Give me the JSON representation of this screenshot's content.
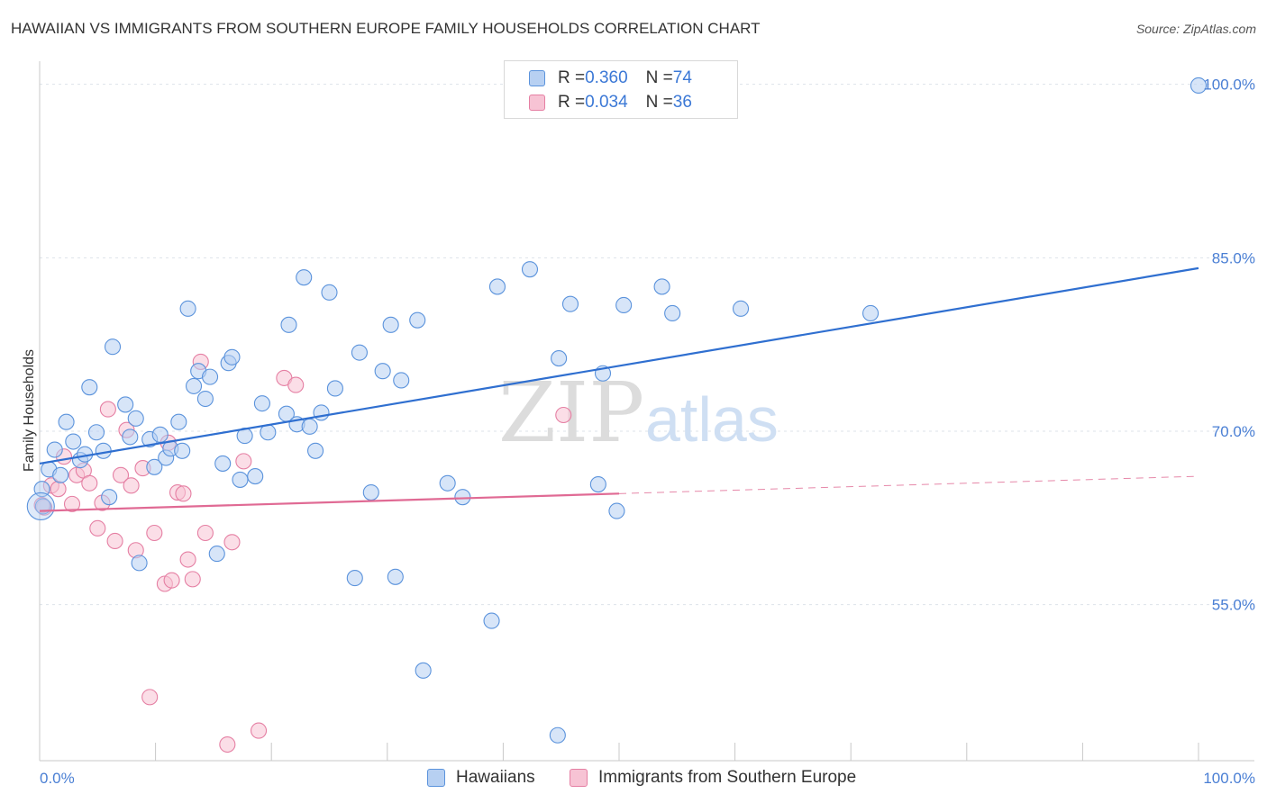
{
  "title": "HAWAIIAN VS IMMIGRANTS FROM SOUTHERN EUROPE FAMILY HOUSEHOLDS CORRELATION CHART",
  "source": "Source: ZipAtlas.com",
  "watermark": {
    "zip": "ZIP",
    "atlas": "atlas"
  },
  "legend": {
    "rows": [
      {
        "r_label": "R = ",
        "r_value": "0.360",
        "n_label": "N = ",
        "n_value": "74"
      },
      {
        "r_label": "R = ",
        "r_value": "0.034",
        "n_label": "N = ",
        "n_value": "36"
      }
    ]
  },
  "bottom_legend": {
    "hawaiians": "Hawaiians",
    "immigrants": "Immigrants from Southern Europe"
  },
  "colors": {
    "blue_fill": "#b7d0f2",
    "blue_stroke": "#5b93dc",
    "blue_line": "#2f6fd0",
    "pink_fill": "#f7c3d4",
    "pink_stroke": "#e57fa3",
    "pink_line": "#e06a94",
    "grid": "#dde3ea",
    "tick_label": "#4a7fd4"
  },
  "chart_data": {
    "type": "scatter",
    "title": "HAWAIIAN VS IMMIGRANTS FROM SOUTHERN EUROPE FAMILY HOUSEHOLDS CORRELATION CHART",
    "xlabel": "",
    "ylabel": "Family Households",
    "xlim": [
      0,
      100
    ],
    "ylim": [
      41.5,
      102
    ],
    "y_ticks": [
      55,
      70,
      85,
      100
    ],
    "y_tick_labels": [
      "55.0%",
      "70.0%",
      "85.0%",
      "100.0%"
    ],
    "x_tick_labels": [
      "0.0%",
      "100.0%"
    ],
    "grid": true,
    "legend_position": "top-center",
    "series": [
      {
        "name": "Hawaiians",
        "color": "blue",
        "trend": {
          "x": [
            0,
            100
          ],
          "y": [
            67.2,
            84.1
          ]
        },
        "points": [
          [
            0.3,
            63.5
          ],
          [
            0.8,
            66.7
          ],
          [
            1.3,
            68.4
          ],
          [
            1.8,
            66.2
          ],
          [
            2.3,
            70.8
          ],
          [
            2.9,
            69.1
          ],
          [
            3.5,
            67.5
          ],
          [
            3.9,
            68.0
          ],
          [
            4.3,
            73.8
          ],
          [
            4.9,
            69.9
          ],
          [
            5.5,
            68.3
          ],
          [
            6.0,
            64.3
          ],
          [
            6.3,
            77.3
          ],
          [
            7.4,
            72.3
          ],
          [
            7.8,
            69.5
          ],
          [
            8.3,
            71.1
          ],
          [
            8.6,
            58.6
          ],
          [
            9.5,
            69.3
          ],
          [
            9.9,
            66.9
          ],
          [
            10.4,
            69.7
          ],
          [
            10.9,
            67.7
          ],
          [
            11.3,
            68.5
          ],
          [
            12.0,
            70.8
          ],
          [
            12.3,
            68.3
          ],
          [
            12.8,
            80.6
          ],
          [
            13.3,
            73.9
          ],
          [
            13.7,
            75.2
          ],
          [
            14.3,
            72.8
          ],
          [
            14.7,
            74.7
          ],
          [
            15.3,
            59.4
          ],
          [
            15.8,
            67.2
          ],
          [
            16.3,
            75.9
          ],
          [
            16.6,
            76.4
          ],
          [
            17.3,
            65.8
          ],
          [
            17.7,
            69.6
          ],
          [
            18.6,
            66.1
          ],
          [
            19.2,
            72.4
          ],
          [
            19.7,
            69.9
          ],
          [
            21.3,
            71.5
          ],
          [
            21.5,
            79.2
          ],
          [
            22.2,
            70.6
          ],
          [
            22.8,
            83.3
          ],
          [
            23.3,
            70.4
          ],
          [
            23.8,
            68.3
          ],
          [
            24.3,
            71.6
          ],
          [
            25.0,
            82.0
          ],
          [
            25.5,
            73.7
          ],
          [
            27.2,
            57.3
          ],
          [
            27.6,
            76.8
          ],
          [
            28.6,
            64.7
          ],
          [
            29.6,
            75.2
          ],
          [
            30.3,
            79.2
          ],
          [
            30.7,
            57.4
          ],
          [
            31.2,
            74.4
          ],
          [
            32.6,
            79.6
          ],
          [
            33.1,
            49.3
          ],
          [
            35.2,
            65.5
          ],
          [
            36.5,
            64.3
          ],
          [
            39.0,
            53.6
          ],
          [
            39.5,
            82.5
          ],
          [
            42.3,
            84.0
          ],
          [
            44.7,
            43.7
          ],
          [
            44.8,
            76.3
          ],
          [
            45.8,
            81.0
          ],
          [
            48.2,
            65.4
          ],
          [
            48.6,
            75.0
          ],
          [
            49.8,
            63.1
          ],
          [
            50.4,
            80.9
          ],
          [
            53.7,
            82.5
          ],
          [
            54.6,
            80.2
          ],
          [
            60.5,
            80.6
          ],
          [
            71.7,
            80.2
          ],
          [
            100.0,
            99.9
          ],
          [
            0.2,
            65.0
          ]
        ]
      },
      {
        "name": "Immigrants from Southern Europe",
        "color": "pink",
        "trend": {
          "x": [
            0,
            50
          ],
          "y": [
            63.1,
            64.6
          ]
        },
        "trend_dashed": {
          "x": [
            50,
            100
          ],
          "y": [
            64.6,
            66.1
          ]
        },
        "points": [
          [
            0.4,
            63.4
          ],
          [
            1.0,
            65.3
          ],
          [
            1.6,
            65.0
          ],
          [
            2.1,
            67.8
          ],
          [
            2.8,
            63.7
          ],
          [
            3.2,
            66.2
          ],
          [
            3.8,
            66.6
          ],
          [
            4.3,
            65.5
          ],
          [
            5.0,
            61.6
          ],
          [
            5.4,
            63.8
          ],
          [
            5.9,
            71.9
          ],
          [
            6.5,
            60.5
          ],
          [
            7.0,
            66.2
          ],
          [
            7.5,
            70.1
          ],
          [
            7.9,
            65.3
          ],
          [
            8.3,
            59.7
          ],
          [
            8.9,
            66.8
          ],
          [
            9.5,
            47.0
          ],
          [
            9.9,
            61.2
          ],
          [
            10.8,
            56.8
          ],
          [
            11.1,
            69.0
          ],
          [
            11.4,
            57.1
          ],
          [
            11.9,
            64.7
          ],
          [
            12.4,
            64.6
          ],
          [
            12.8,
            58.9
          ],
          [
            13.2,
            57.2
          ],
          [
            13.9,
            76.0
          ],
          [
            14.3,
            61.2
          ],
          [
            16.2,
            42.9
          ],
          [
            16.6,
            60.4
          ],
          [
            17.6,
            67.4
          ],
          [
            18.9,
            44.1
          ],
          [
            21.1,
            74.6
          ],
          [
            22.1,
            74.0
          ],
          [
            45.2,
            71.4
          ],
          [
            0.2,
            63.6
          ]
        ]
      }
    ]
  }
}
